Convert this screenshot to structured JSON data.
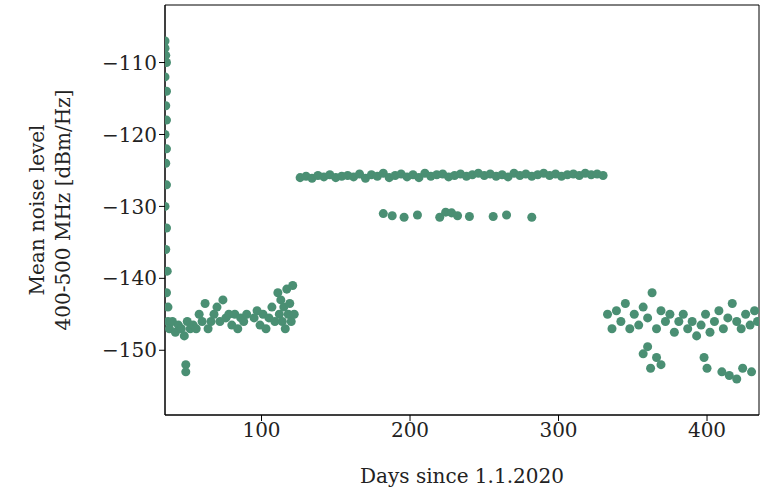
{
  "chart_data": {
    "type": "scatter",
    "xlabel": "Days since 1.1.2020",
    "ylabel": "Mean noise level\n400-500 MHz [dBm/Hz]",
    "color": "#4a8f73",
    "marker": "circle",
    "grid": false,
    "xlim": [
      35,
      435
    ],
    "xticks": [
      100,
      200,
      300,
      400
    ],
    "ylim": [
      -159,
      -102
    ],
    "yticks": [
      {
        "value": -110,
        "label": "−110"
      },
      {
        "value": -120,
        "label": "−120"
      },
      {
        "value": -130,
        "label": "−130"
      },
      {
        "value": -140,
        "label": "−140"
      },
      {
        "value": -150,
        "label": "−150"
      }
    ],
    "x": [
      35,
      35,
      35.5,
      36,
      35,
      36,
      35.5,
      36,
      35,
      36,
      35.5,
      36,
      35,
      36,
      35.5,
      36.5,
      36,
      37,
      37,
      38,
      40,
      42,
      44,
      46,
      48,
      49,
      49,
      50,
      52,
      54,
      56,
      58,
      60,
      62,
      64,
      66,
      68,
      70,
      72,
      74,
      76,
      78,
      80,
      82,
      84,
      86,
      88,
      90,
      95,
      97,
      99,
      101,
      103,
      105,
      107,
      109,
      111,
      112,
      113,
      114,
      115,
      116,
      117,
      118,
      119,
      120,
      121,
      122,
      126,
      130,
      134,
      138,
      142,
      146,
      150,
      154,
      158,
      162,
      166,
      170,
      174,
      178,
      182,
      186,
      190,
      194,
      198,
      202,
      206,
      210,
      214,
      218,
      222,
      226,
      230,
      234,
      238,
      242,
      246,
      250,
      254,
      258,
      262,
      266,
      270,
      274,
      278,
      282,
      286,
      290,
      294,
      298,
      302,
      306,
      310,
      314,
      318,
      322,
      326,
      330,
      182,
      188,
      196,
      205,
      220,
      224,
      228,
      232,
      240,
      256,
      265,
      282,
      333,
      336,
      339,
      342,
      345,
      348,
      351,
      354,
      357,
      360,
      363,
      366,
      369,
      372,
      375,
      378,
      381,
      384,
      387,
      390,
      393,
      396,
      399,
      402,
      405,
      408,
      411,
      414,
      417,
      420,
      423,
      426,
      429,
      432,
      434,
      357,
      360,
      362,
      366,
      369,
      398,
      400,
      410,
      415,
      420,
      424,
      430
    ],
    "values": [
      -107,
      -108,
      -109,
      -110,
      -112,
      -114,
      -116,
      -118,
      -120,
      -122,
      -124,
      -127,
      -130,
      -133,
      -136,
      -139,
      -142,
      -144,
      -146,
      -147,
      -146,
      -147.5,
      -146.5,
      -147,
      -148,
      -152,
      -153,
      -146,
      -147,
      -146.5,
      -147,
      -145,
      -146,
      -143.5,
      -147,
      -146,
      -145,
      -144,
      -146,
      -143,
      -145.5,
      -145,
      -146.5,
      -145,
      -147,
      -145.5,
      -146,
      -145,
      -145.5,
      -144.5,
      -146.5,
      -145,
      -147,
      -145.5,
      -144,
      -146,
      -142,
      -145,
      -143,
      -146,
      -144,
      -147,
      -141.5,
      -145,
      -143.5,
      -146,
      -141,
      -145,
      -126,
      -125.8,
      -126.1,
      -125.7,
      -125.9,
      -125.6,
      -126,
      -125.8,
      -125.7,
      -125.9,
      -125.5,
      -126.1,
      -125.6,
      -125.8,
      -125.4,
      -126,
      -125.7,
      -125.5,
      -125.9,
      -125.6,
      -126,
      -125.4,
      -125.8,
      -125.6,
      -125.5,
      -125.9,
      -125.7,
      -125.5,
      -125.8,
      -125.6,
      -125.4,
      -125.7,
      -125.5,
      -125.8,
      -125.6,
      -125.9,
      -125.4,
      -125.7,
      -125.5,
      -125.8,
      -125.6,
      -125.4,
      -125.7,
      -125.5,
      -125.8,
      -125.6,
      -125.5,
      -125.7,
      -125.4,
      -125.6,
      -125.5,
      -125.7,
      -131,
      -131.3,
      -131.5,
      -131.2,
      -131.5,
      -130.8,
      -130.9,
      -131.3,
      -131.4,
      -131.4,
      -131.2,
      -131.5,
      -145,
      -147,
      -144.5,
      -146,
      -143.5,
      -147,
      -145,
      -146.5,
      -144,
      -145.5,
      -142,
      -147,
      -144.5,
      -146,
      -145,
      -147.5,
      -146,
      -145,
      -147,
      -146,
      -148,
      -146.5,
      -145,
      -147.5,
      -146,
      -144.5,
      -147,
      -145.5,
      -143.5,
      -146,
      -147,
      -145,
      -146.5,
      -144.5,
      -146,
      -150.5,
      -149.5,
      -152.5,
      -151,
      -152,
      -151,
      -152.5,
      -153,
      -153.5,
      -154,
      -152.5,
      -153
    ]
  }
}
